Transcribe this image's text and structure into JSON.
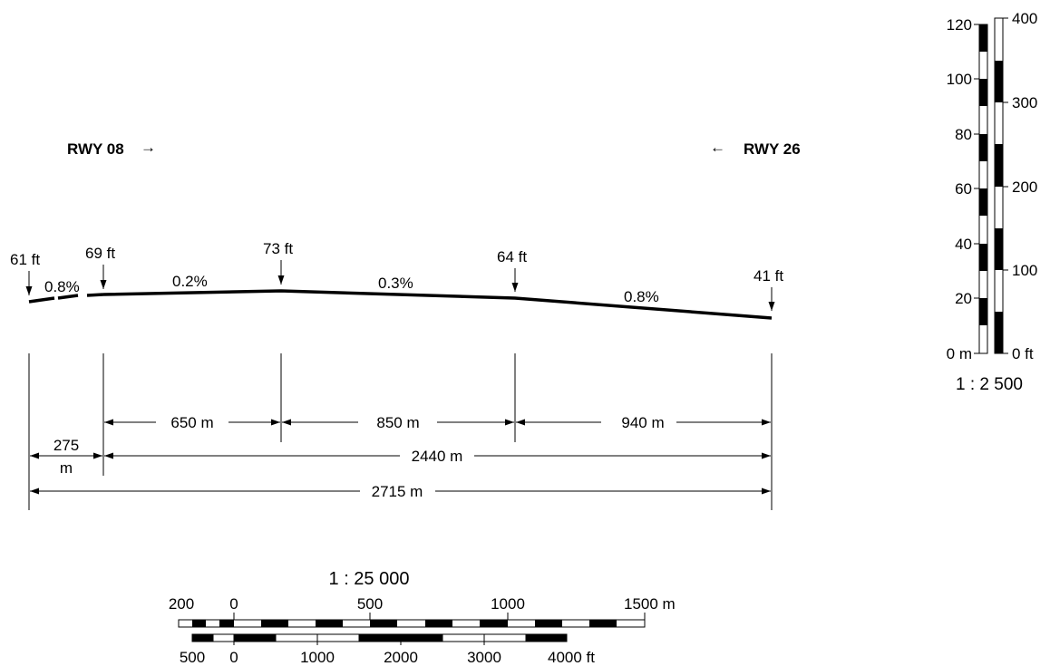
{
  "runway": {
    "left_label": "RWY 08",
    "left_arrow": "→",
    "right_label": "RWY 26",
    "right_arrow": "←"
  },
  "elevations": [
    "61 ft",
    "69 ft",
    "73 ft",
    "64 ft",
    "41 ft"
  ],
  "slopes": [
    "0.8%",
    "0.2%",
    "0.3%",
    "0.8%"
  ],
  "dimensions": {
    "seg_275_top": "275",
    "seg_275_bottom": "m",
    "seg_650": "650 m",
    "seg_850": "850 m",
    "seg_940": "940 m",
    "seg_2440": "2440 m",
    "seg_2715": "2715 m"
  },
  "horizontal_scale": {
    "ratio": "1 : 25 000",
    "meter_ticks": [
      "200",
      "0",
      "500",
      "1000",
      "1500 m"
    ],
    "feet_ticks": [
      "500",
      "0",
      "1000",
      "2000",
      "3000",
      "4000 ft"
    ]
  },
  "vertical_scale": {
    "ratio": "1 : 2 500",
    "meter_ticks": [
      "0 m",
      "20",
      "40",
      "60",
      "80",
      "100",
      "120"
    ],
    "feet_ticks": [
      "0 ft",
      "100",
      "200",
      "300",
      "400"
    ]
  }
}
